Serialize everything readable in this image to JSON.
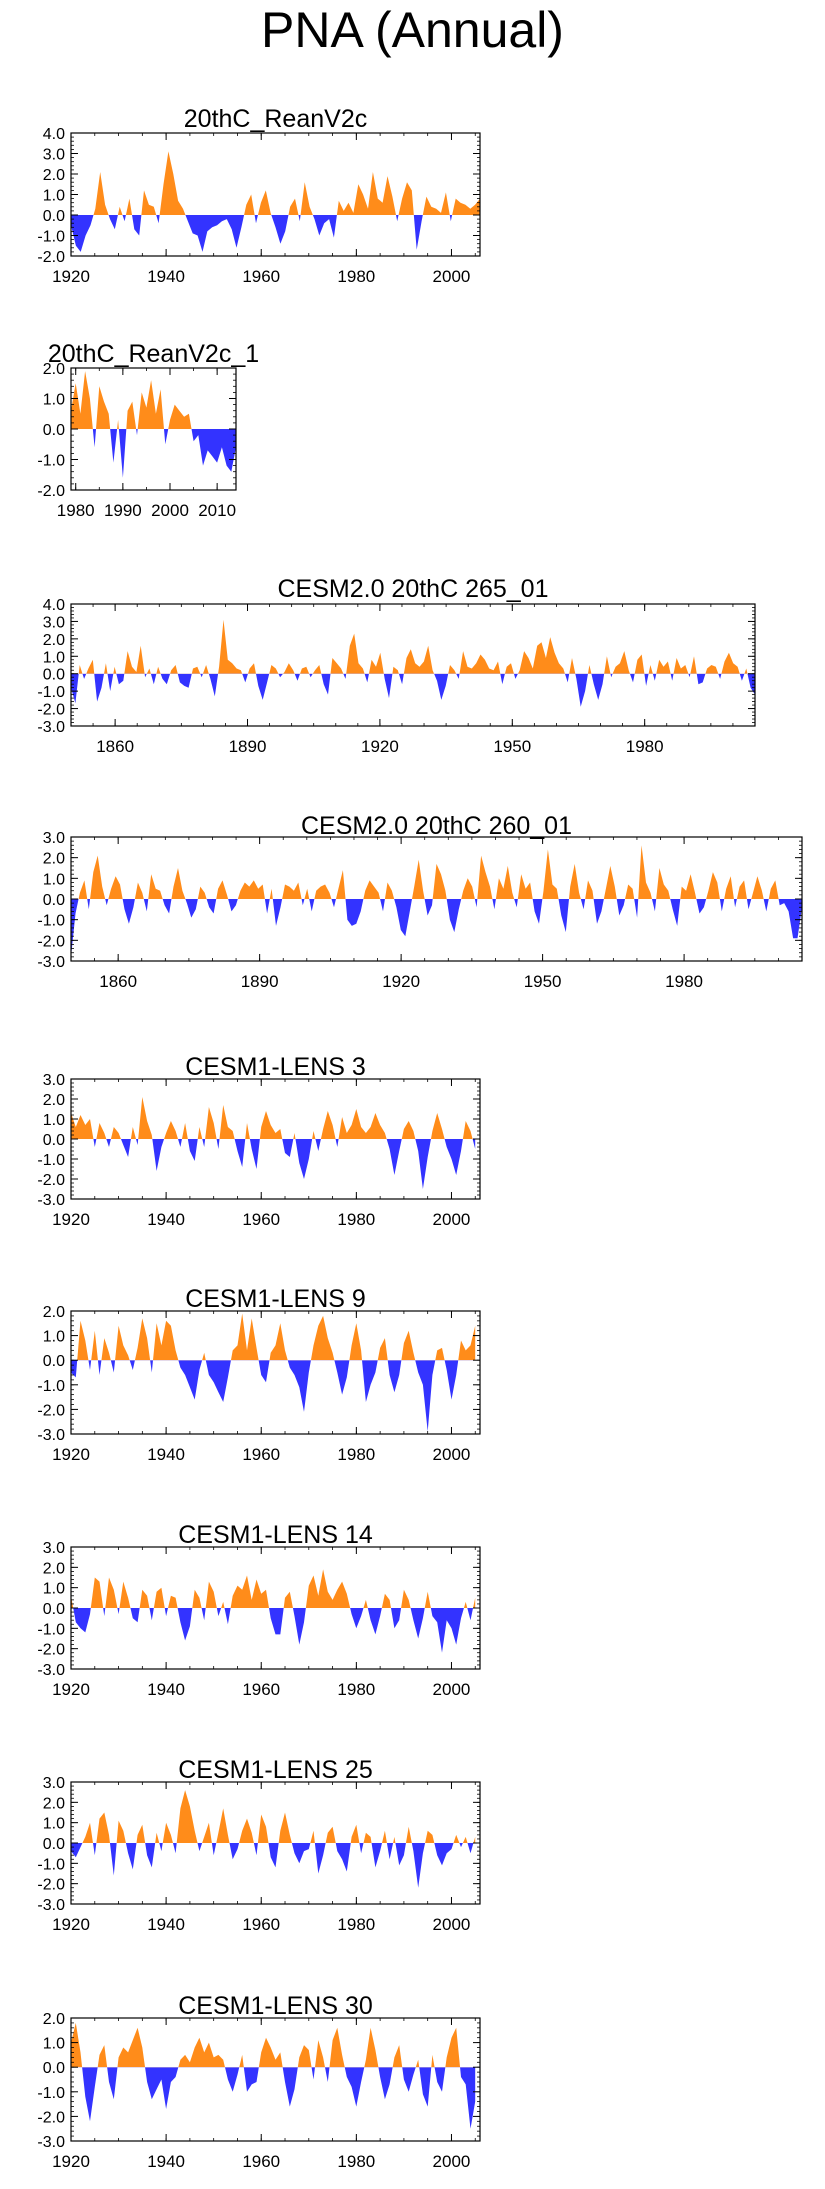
{
  "title": "PNA (Annual)",
  "colors": {
    "positive": "#ff8c1a",
    "negative": "#3333ff",
    "axis": "#000000"
  },
  "chart_data": [
    {
      "type": "area",
      "title": "20thC_ReanV2c",
      "x_start": 1920,
      "x_end": 2006,
      "xlim": [
        1920,
        2006
      ],
      "ylim": [
        -2.0,
        4.0
      ],
      "yticks": [
        "4.0",
        "3.0",
        "2.0",
        "1.0",
        "0.0",
        "-1.0",
        "-2.0"
      ],
      "xticks": [
        "1920",
        "1940",
        "1960",
        "1980",
        "2000"
      ],
      "values": [
        -0.5,
        -1.5,
        -1.8,
        -1.0,
        -0.5,
        0.3,
        2.1,
        0.5,
        -0.2,
        -0.7,
        0.4,
        -0.3,
        0.8,
        -0.7,
        -1.0,
        1.2,
        0.5,
        0.4,
        -0.4,
        1.5,
        3.1,
        2.0,
        0.7,
        0.3,
        -0.3,
        -0.9,
        -1.0,
        -1.8,
        -0.8,
        -0.6,
        -0.5,
        -0.3,
        -0.2,
        -0.7,
        -1.6,
        -0.6,
        0.5,
        1.0,
        -0.4,
        0.6,
        1.2,
        0.1,
        -0.6,
        -1.4,
        -0.8,
        0.4,
        0.8,
        -0.3,
        1.6,
        0.4,
        -0.2,
        -1.0,
        -0.4,
        -0.2,
        -1.1,
        0.7,
        0.2,
        0.6,
        0.1,
        1.5,
        1.0,
        0.3,
        2.1,
        0.8,
        0.6,
        1.9,
        0.9,
        -0.3,
        0.8,
        1.6,
        1.2,
        -1.7,
        -0.3,
        0.9,
        0.4,
        0.3,
        0.1,
        1.1,
        -0.3,
        0.8,
        0.6,
        0.5,
        0.3,
        0.5,
        0.8
      ]
    },
    {
      "type": "area",
      "title": "20thC_ReanV2c_1",
      "x_start": 1979,
      "x_end": 2014,
      "xlim": [
        1979,
        2014
      ],
      "ylim": [
        -2.0,
        2.0
      ],
      "yticks": [
        "2.0",
        "1.0",
        "0.0",
        "-1.0",
        "-2.0"
      ],
      "xticks": [
        "1980",
        "1990",
        "2000",
        "2010"
      ],
      "values": [
        0.6,
        1.5,
        0.5,
        1.9,
        1.0,
        -0.6,
        1.4,
        0.9,
        0.5,
        -1.1,
        0.3,
        -1.6,
        0.6,
        0.9,
        -0.2,
        1.2,
        0.7,
        1.6,
        0.5,
        1.3,
        -0.5,
        0.3,
        0.8,
        0.6,
        0.4,
        0.5,
        -0.4,
        -0.2,
        -1.2,
        -0.7,
        -0.9,
        -1.1,
        -0.6,
        -1.2,
        -1.4,
        -0.6
      ]
    },
    {
      "type": "area",
      "title": "CESM2.0 20thC 265_01",
      "x_start": 1850,
      "x_end": 2005,
      "xlim": [
        1850,
        2005
      ],
      "ylim": [
        -3.0,
        4.0
      ],
      "yticks": [
        "4.0",
        "3.0",
        "2.0",
        "1.0",
        "0.0",
        "-1.0",
        "-2.0",
        "-3.0"
      ],
      "xticks": [
        "1860",
        "1890",
        "1920",
        "1950",
        "1980"
      ],
      "values": [
        -0.8,
        -1.7,
        0.5,
        -0.3,
        0.3,
        0.8,
        -1.6,
        -0.8,
        0.6,
        -1.0,
        0.4,
        -0.6,
        -0.4,
        1.3,
        0.4,
        0.1,
        1.6,
        -0.2,
        0.3,
        -0.6,
        0.4,
        -0.3,
        -0.6,
        0.2,
        0.5,
        -0.5,
        -0.7,
        -0.8,
        0.3,
        0.4,
        -0.2,
        0.5,
        -0.3,
        -1.3,
        0.4,
        3.1,
        0.8,
        0.6,
        0.3,
        0.2,
        -0.5,
        0.3,
        0.6,
        -0.7,
        -1.5,
        -0.5,
        0.5,
        0.3,
        -0.2,
        0.1,
        0.6,
        0.2,
        -0.4,
        0.3,
        0.4,
        -0.2,
        0.2,
        0.5,
        -0.6,
        -1.2,
        0.9,
        0.6,
        0.3,
        -0.3,
        1.6,
        2.3,
        0.6,
        0.3,
        -0.5,
        0.8,
        0.4,
        1.2,
        -0.3,
        -1.4,
        0.4,
        0.2,
        -0.6,
        0.9,
        1.4,
        0.6,
        0.4,
        0.7,
        1.6,
        0.2,
        -0.4,
        -1.5,
        -0.7,
        0.5,
        0.2,
        -0.3,
        1.3,
        0.4,
        0.3,
        0.6,
        1.1,
        0.8,
        0.3,
        0.2,
        0.7,
        -0.6,
        0.4,
        0.6,
        -0.3,
        0.2,
        1.3,
        0.9,
        0.3,
        1.6,
        1.8,
        0.9,
        2.1,
        1.2,
        0.6,
        0.3,
        -0.5,
        0.9,
        -0.3,
        -1.9,
        -1.0,
        0.5,
        -0.6,
        -1.5,
        -0.6,
        1.0,
        -0.2,
        0.4,
        0.6,
        1.3,
        0.2,
        -0.5,
        0.8,
        1.1,
        -0.7,
        0.5,
        -0.4,
        0.8,
        0.4,
        0.7,
        -0.4,
        0.9,
        0.3,
        0.5,
        -0.2,
        1.0,
        -0.6,
        -0.5,
        0.3,
        0.5,
        0.4,
        -0.3,
        0.7,
        1.2,
        0.6,
        0.4,
        -0.4,
        0.3,
        -0.8,
        -1.2
      ]
    },
    {
      "type": "area",
      "title": "CESM2.0 20thC 260_01",
      "x_start": 1850,
      "x_end": 2005,
      "xlim": [
        1850,
        2005
      ],
      "ylim": [
        -3.0,
        3.0
      ],
      "yticks": [
        "3.0",
        "2.0",
        "1.0",
        "0.0",
        "-1.0",
        "-2.0",
        "-3.0"
      ],
      "xticks": [
        "1860",
        "1890",
        "1920",
        "1950",
        "1980"
      ],
      "values": [
        -2.8,
        -0.7,
        0.3,
        0.9,
        -0.5,
        1.3,
        2.1,
        0.6,
        -0.3,
        0.5,
        1.1,
        0.7,
        -0.5,
        -1.2,
        -0.4,
        0.8,
        0.3,
        -0.6,
        1.2,
        0.5,
        0.4,
        -0.3,
        -0.7,
        0.6,
        1.5,
        0.4,
        -0.2,
        -0.9,
        -0.5,
        0.6,
        0.3,
        -0.4,
        -0.7,
        0.5,
        0.9,
        0.2,
        -0.6,
        -0.3,
        0.4,
        0.8,
        0.6,
        0.9,
        0.5,
        0.7,
        -0.7,
        0.5,
        -1.3,
        -0.4,
        0.7,
        0.6,
        0.4,
        0.8,
        -0.3,
        0.5,
        -0.6,
        0.4,
        0.6,
        0.7,
        0.3,
        -0.4,
        0.5,
        1.4,
        -1.0,
        -1.3,
        -1.2,
        -0.6,
        0.4,
        0.9,
        0.6,
        0.3,
        -0.6,
        0.8,
        0.4,
        -0.4,
        -1.5,
        -1.8,
        -0.6,
        0.6,
        1.9,
        0.4,
        -0.8,
        -0.3,
        1.7,
        1.2,
        0.4,
        -1.0,
        -1.6,
        -0.5,
        0.4,
        1.0,
        0.6,
        -0.4,
        2.1,
        1.3,
        0.6,
        -0.5,
        1.0,
        0.5,
        1.6,
        0.3,
        -0.4,
        1.2,
        0.5,
        0.8,
        -0.6,
        -1.2,
        0.4,
        2.4,
        0.7,
        0.5,
        -0.8,
        -1.6,
        0.6,
        1.7,
        0.3,
        -0.5,
        0.9,
        0.4,
        -1.2,
        -0.6,
        0.5,
        1.6,
        0.6,
        -0.8,
        -0.3,
        0.7,
        0.5,
        -0.9,
        2.6,
        0.8,
        0.3,
        -0.6,
        1.5,
        0.7,
        0.4,
        -0.5,
        -1.3,
        0.6,
        0.4,
        1.2,
        0.3,
        -0.7,
        -0.4,
        0.4,
        1.3,
        0.8,
        -0.6,
        0.5,
        1.1,
        -0.4,
        0.6,
        0.9,
        -0.5,
        0.3,
        1.1,
        0.4,
        -0.6,
        0.5,
        0.9,
        -0.3,
        -0.2,
        -0.6,
        -1.9,
        -1.9,
        -0.4
      ]
    },
    {
      "type": "area",
      "title": "CESM1-LENS 3",
      "x_start": 1920,
      "x_end": 2005,
      "xlim": [
        1920,
        2006
      ],
      "ylim": [
        -3.0,
        3.0
      ],
      "yticks": [
        "3.0",
        "2.0",
        "1.0",
        "0.0",
        "-1.0",
        "-2.0",
        "-3.0"
      ],
      "xticks": [
        "1920",
        "1940",
        "1960",
        "1980",
        "2000"
      ],
      "values": [
        1.3,
        0.6,
        1.2,
        0.7,
        1.0,
        -0.4,
        0.8,
        0.3,
        -0.4,
        0.6,
        0.3,
        -0.3,
        -0.9,
        0.6,
        -0.3,
        2.1,
        0.9,
        0.2,
        -1.6,
        -0.4,
        0.3,
        0.9,
        0.4,
        -0.4,
        0.8,
        -0.6,
        -1.1,
        0.6,
        -0.4,
        1.6,
        0.8,
        -0.5,
        1.7,
        0.6,
        0.4,
        -0.6,
        -1.4,
        0.8,
        -0.5,
        -1.5,
        0.6,
        1.4,
        0.7,
        0.3,
        0.5,
        -0.7,
        -0.9,
        0.3,
        -1.2,
        -2.0,
        -1.0,
        0.4,
        -0.6,
        0.5,
        1.4,
        0.7,
        -0.4,
        1.1,
        0.3,
        0.7,
        1.5,
        0.6,
        0.3,
        0.6,
        1.3,
        0.7,
        0.3,
        -0.5,
        -1.8,
        -0.6,
        0.5,
        0.9,
        0.4,
        -0.6,
        -2.5,
        -0.9,
        0.4,
        1.3,
        0.5,
        -0.4,
        -1.0,
        -1.8,
        -0.6,
        0.9,
        0.4,
        -0.5
      ]
    },
    {
      "type": "area",
      "title": "CESM1-LENS 9",
      "x_start": 1920,
      "x_end": 2005,
      "xlim": [
        1920,
        2006
      ],
      "ylim": [
        -3.0,
        2.0
      ],
      "yticks": [
        "2.0",
        "1.0",
        "0.0",
        "-1.0",
        "-2.0",
        "-3.0"
      ],
      "xticks": [
        "1920",
        "1940",
        "1960",
        "1980",
        "2000"
      ],
      "values": [
        -0.5,
        -0.7,
        1.6,
        0.8,
        -0.4,
        1.2,
        -0.6,
        0.9,
        0.3,
        -0.5,
        1.4,
        0.6,
        0.2,
        -0.4,
        0.5,
        1.7,
        0.9,
        -0.5,
        1.5,
        0.6,
        1.6,
        1.4,
        0.4,
        -0.3,
        -0.6,
        -1.1,
        -1.6,
        -0.4,
        0.3,
        -0.6,
        -0.9,
        -1.3,
        -1.7,
        -0.7,
        0.4,
        0.6,
        1.9,
        0.4,
        1.7,
        0.5,
        -0.6,
        -0.9,
        0.3,
        0.6,
        1.5,
        0.4,
        -0.3,
        -0.6,
        -1.1,
        -2.1,
        -0.5,
        0.6,
        1.4,
        1.8,
        0.9,
        0.3,
        -0.5,
        -1.4,
        -0.7,
        0.6,
        1.5,
        0.4,
        -1.7,
        -1.0,
        -0.5,
        0.5,
        0.9,
        -0.6,
        -1.3,
        -0.6,
        0.7,
        1.2,
        0.3,
        -0.5,
        -1.0,
        -2.9,
        -0.6,
        0.4,
        0.5,
        -0.4,
        -1.6,
        -0.6,
        0.8,
        0.4,
        0.6,
        1.4
      ]
    },
    {
      "type": "area",
      "title": "CESM1-LENS 14",
      "x_start": 1920,
      "x_end": 2005,
      "xlim": [
        1920,
        2006
      ],
      "ylim": [
        -3.0,
        3.0
      ],
      "yticks": [
        "3.0",
        "2.0",
        "1.0",
        "0.0",
        "-1.0",
        "-2.0",
        "-3.0"
      ],
      "xticks": [
        "1920",
        "1940",
        "1960",
        "1980",
        "2000"
      ],
      "values": [
        0.6,
        -0.7,
        -1.0,
        -1.2,
        -0.3,
        1.5,
        1.3,
        -0.4,
        1.5,
        0.9,
        -0.3,
        1.3,
        0.5,
        -0.5,
        -0.7,
        0.9,
        0.6,
        -0.6,
        0.8,
        1.0,
        -0.4,
        0.6,
        0.5,
        -0.7,
        -1.6,
        -0.9,
        0.9,
        0.5,
        -0.6,
        1.3,
        0.8,
        -0.4,
        0.3,
        -0.8,
        0.6,
        1.1,
        0.9,
        1.6,
        0.4,
        1.4,
        0.7,
        0.9,
        -0.5,
        -1.3,
        -1.3,
        0.5,
        0.8,
        -0.4,
        -1.8,
        -0.7,
        1.1,
        1.6,
        0.6,
        1.9,
        0.8,
        0.4,
        0.9,
        1.3,
        0.7,
        -0.3,
        -1.0,
        -0.4,
        0.4,
        -0.6,
        -1.3,
        -0.4,
        0.7,
        0.4,
        -1.0,
        -0.6,
        0.9,
        0.4,
        -0.6,
        -1.5,
        -0.5,
        0.8,
        -0.4,
        -0.7,
        -2.2,
        -0.6,
        -1.0,
        -1.8,
        -0.5,
        0.3,
        -0.6,
        0.5
      ]
    },
    {
      "type": "area",
      "title": "CESM1-LENS 25",
      "x_start": 1920,
      "x_end": 2005,
      "xlim": [
        1920,
        2006
      ],
      "ylim": [
        -3.0,
        3.0
      ],
      "yticks": [
        "3.0",
        "2.0",
        "1.0",
        "0.0",
        "-1.0",
        "-2.0",
        "-3.0"
      ],
      "xticks": [
        "1920",
        "1940",
        "1960",
        "1980",
        "2000"
      ],
      "values": [
        -0.4,
        -0.7,
        -0.2,
        0.3,
        1.0,
        -0.6,
        1.2,
        1.5,
        0.4,
        -1.6,
        1.1,
        0.6,
        -0.5,
        -1.3,
        0.4,
        0.9,
        -0.6,
        -1.2,
        0.5,
        -0.4,
        1.0,
        0.4,
        -0.5,
        1.7,
        2.6,
        1.8,
        0.6,
        -0.4,
        0.3,
        1.0,
        -0.6,
        0.5,
        1.7,
        0.4,
        -0.8,
        -0.3,
        0.6,
        1.2,
        0.5,
        -0.6,
        1.4,
        0.8,
        -0.7,
        -1.2,
        0.6,
        1.5,
        0.4,
        -0.5,
        -1.0,
        -0.4,
        -0.3,
        0.6,
        -1.5,
        -0.6,
        0.5,
        0.8,
        -0.4,
        -0.8,
        -1.4,
        0.3,
        0.9,
        -0.5,
        0.5,
        0.3,
        -1.2,
        -0.4,
        0.6,
        -0.8,
        0.3,
        -1.1,
        -0.6,
        0.8,
        -0.4,
        -2.2,
        -0.5,
        0.6,
        0.4,
        -0.6,
        -1.1,
        -0.5,
        -0.3,
        0.4,
        -0.2,
        0.3,
        -0.5,
        0.3
      ]
    },
    {
      "type": "area",
      "title": "CESM1-LENS 30",
      "x_start": 1920,
      "x_end": 2005,
      "xlim": [
        1920,
        2006
      ],
      "ylim": [
        -3.0,
        2.0
      ],
      "yticks": [
        "2.0",
        "1.0",
        "0.0",
        "-1.0",
        "-2.0",
        "-3.0"
      ],
      "xticks": [
        "1920",
        "1940",
        "1960",
        "1980",
        "2000"
      ],
      "values": [
        1.0,
        1.8,
        0.6,
        -1.2,
        -2.2,
        -0.8,
        0.5,
        0.9,
        -0.6,
        -1.3,
        0.4,
        0.8,
        0.6,
        1.1,
        1.6,
        0.8,
        -0.6,
        -1.3,
        -0.9,
        -0.5,
        -1.7,
        -0.6,
        -0.4,
        0.3,
        0.5,
        0.2,
        0.8,
        1.2,
        0.6,
        1.0,
        0.4,
        0.5,
        0.3,
        -0.5,
        -1.0,
        -0.3,
        0.5,
        -1.0,
        -0.7,
        -0.6,
        0.6,
        1.2,
        0.8,
        0.3,
        0.6,
        -0.6,
        -1.6,
        -0.9,
        0.4,
        0.9,
        0.7,
        -0.5,
        1.1,
        0.4,
        -0.6,
        1.1,
        1.6,
        0.5,
        -0.4,
        -0.8,
        -1.6,
        -0.6,
        0.3,
        1.6,
        0.7,
        -0.4,
        -1.3,
        -0.7,
        0.4,
        0.9,
        -0.5,
        -1.0,
        -0.3,
        0.3,
        -1.1,
        -1.6,
        0.5,
        -0.6,
        -1.0,
        0.4,
        1.2,
        1.6,
        -0.4,
        -0.7,
        -2.5,
        -1.4
      ]
    }
  ]
}
